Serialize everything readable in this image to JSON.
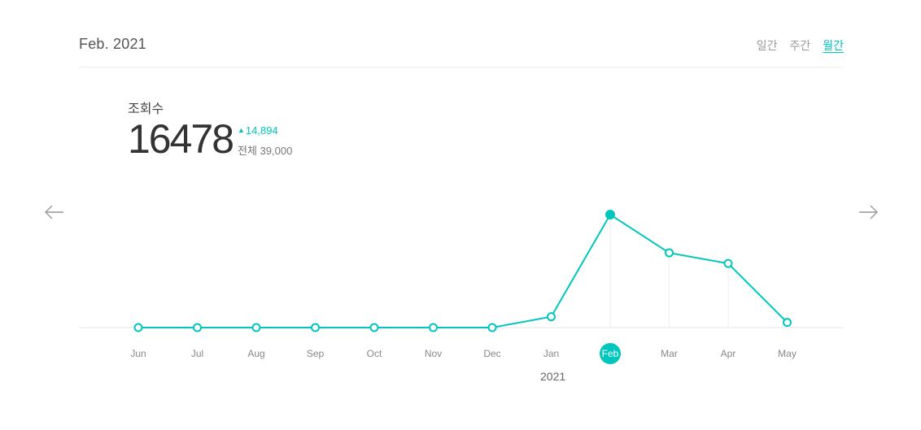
{
  "header": {
    "period_title": "Feb. 2021",
    "tabs": [
      {
        "label": "일간",
        "active": false
      },
      {
        "label": "주간",
        "active": false
      },
      {
        "label": "월간",
        "active": true
      }
    ]
  },
  "metric": {
    "label": "조회수",
    "value": "16478",
    "delta": "14,894",
    "total": "전체 39,000"
  },
  "nav": {
    "prev_icon": "arrow-left-icon",
    "next_icon": "arrow-right-icon"
  },
  "colors": {
    "accent": "#00c6be",
    "baseline": "#e6e6e6",
    "guide": "#eeeeee"
  },
  "chart_data": {
    "type": "line",
    "categories": [
      "Jun",
      "Jul",
      "Aug",
      "Sep",
      "Oct",
      "Nov",
      "Dec",
      "Jan",
      "Feb",
      "Mar",
      "Apr",
      "May"
    ],
    "values": [
      0,
      0,
      0,
      0,
      0,
      0,
      0,
      1584,
      16478,
      10900,
      9350,
      750
    ],
    "selected": "Feb",
    "year_label": "2021",
    "ylim": [
      0,
      16478
    ]
  }
}
